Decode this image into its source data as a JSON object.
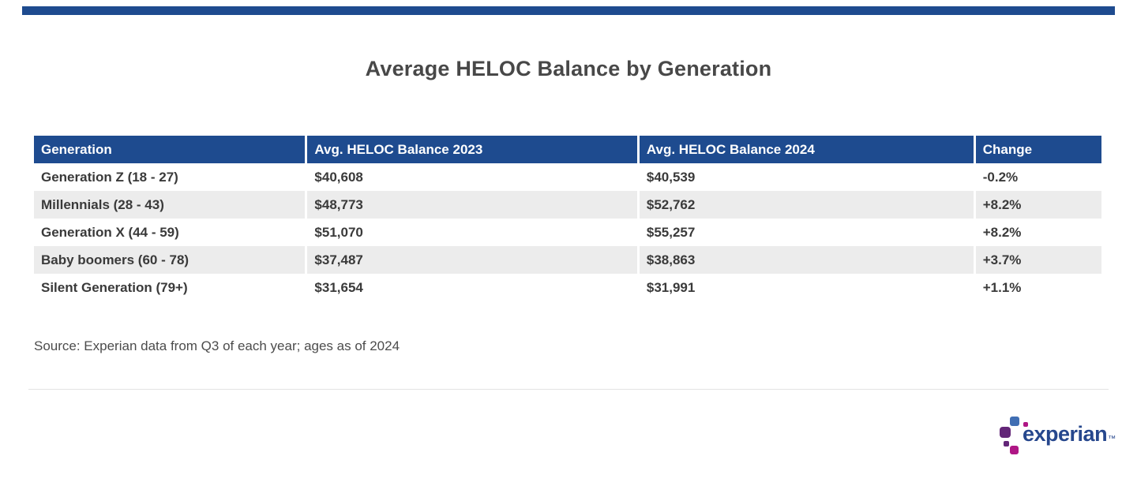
{
  "title": "Average HELOC Balance by Generation",
  "colors": {
    "header_navy": "#1e4b8f",
    "alt_row_gray": "#ececec",
    "title_gray": "#484848",
    "logo_blue": "#26478d",
    "logo_dot_blue": "#406eb3",
    "logo_dot_purple": "#632678",
    "logo_dot_magenta": "#af1685"
  },
  "chart_data": {
    "type": "table",
    "title": "Average HELOC Balance by Generation",
    "columns": [
      "Generation",
      "Avg. HELOC Balance 2023",
      "Avg. HELOC Balance 2024",
      "Change"
    ],
    "rows": [
      [
        "Generation Z (18 - 27)",
        "$40,608",
        "$40,539",
        "-0.2%"
      ],
      [
        "Millennials (28 - 43)",
        "$48,773",
        "$52,762",
        "+8.2%"
      ],
      [
        "Generation X (44 - 59)",
        "$51,070",
        "$55,257",
        "+8.2%"
      ],
      [
        "Baby boomers (60 - 78)",
        "$37,487",
        "$38,863",
        "+3.7%"
      ],
      [
        "Silent Generation (79+)",
        "$31,654",
        "$31,991",
        "+1.1%"
      ]
    ],
    "source": "Source: Experian data from Q3 of each year; ages as of 2024"
  },
  "table": {
    "columns": [
      "Generation",
      "Avg. HELOC Balance 2023",
      "Avg. HELOC Balance 2024",
      "Change"
    ],
    "rows": [
      [
        "Generation Z (18 - 27)",
        "$40,608",
        "$40,539",
        "-0.2%"
      ],
      [
        "Millennials (28 - 43)",
        "$48,773",
        "$52,762",
        "+8.2%"
      ],
      [
        "Generation X (44 - 59)",
        "$51,070",
        "$55,257",
        "+8.2%"
      ],
      [
        "Baby boomers (60 - 78)",
        "$37,487",
        "$38,863",
        "+3.7%"
      ],
      [
        "Silent Generation (79+)",
        "$31,654",
        "$31,991",
        "+1.1%"
      ]
    ]
  },
  "source_note": "Source: Experian data from Q3 of each year; ages as of 2024",
  "logo": {
    "text": "experian",
    "trademark": "™"
  }
}
